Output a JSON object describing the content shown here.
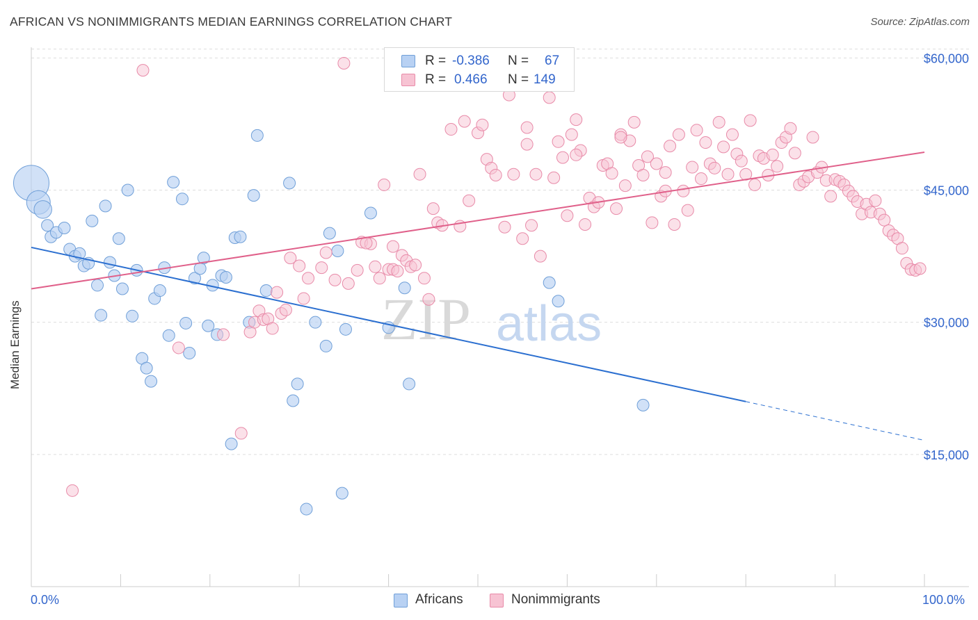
{
  "title": "AFRICAN VS NONIMMIGRANTS MEDIAN EARNINGS CORRELATION CHART",
  "source": "Source: ZipAtlas.com",
  "legend": {
    "rows": [
      {
        "r_label": "R =",
        "r_value": "-0.386",
        "n_label": "N =",
        "n_value": "67"
      },
      {
        "r_label": "R =",
        "r_value": "0.466",
        "n_label": "N =",
        "n_value": "149"
      }
    ]
  },
  "bottom_legend": {
    "africans": "Africans",
    "nonimmigrants": "Nonimmigrants"
  },
  "x_axis": {
    "min_label": "0.0%",
    "max_label": "100.0%"
  },
  "watermark": {
    "zip": "ZIP",
    "atlas": "atlas"
  },
  "colors": {
    "africans_fill": "#b8d1f3",
    "africans_stroke": "#6f9fd8",
    "africans_line": "#2b6fd0",
    "nonimmigrants_fill": "#f7c3d3",
    "nonimmigrants_stroke": "#e88aa8",
    "nonimmigrants_line": "#e0608a",
    "axis_text": "#3366cc",
    "grid": "#dddddd"
  },
  "chart_data": {
    "type": "scatter",
    "xlabel": "",
    "ylabel": "Median Earnings",
    "xlim": [
      0,
      100
    ],
    "ylim": [
      0,
      62000
    ],
    "y_ticks": [
      15000,
      30000,
      45000,
      60000
    ],
    "y_tick_labels": [
      "$15,000",
      "$30,000",
      "$45,000",
      "$60,000"
    ],
    "grid": true,
    "legend_position": "top-center",
    "series": [
      {
        "name": "Africans",
        "r": -0.386,
        "n": 67,
        "trend": {
          "x0": 0,
          "y0": 38500,
          "x1": 80,
          "y1": 21000,
          "dashed_to_x": 100,
          "dashed_y": 16600
        },
        "points": [
          [
            0,
            45800,
            3
          ],
          [
            0.8,
            43600,
            2
          ],
          [
            1.3,
            42800,
            1.5
          ],
          [
            1.8,
            41000,
            1
          ],
          [
            2.2,
            39700,
            1
          ],
          [
            2.8,
            40200,
            1
          ],
          [
            3.7,
            40700,
            1
          ],
          [
            4.3,
            38300,
            1
          ],
          [
            4.9,
            37500,
            1
          ],
          [
            5.4,
            37800,
            1
          ],
          [
            5.9,
            36400,
            1
          ],
          [
            6.4,
            36700,
            1
          ],
          [
            6.8,
            41500,
            1
          ],
          [
            7.4,
            34200,
            1
          ],
          [
            7.8,
            30800,
            1
          ],
          [
            8.3,
            43200,
            1
          ],
          [
            8.8,
            36800,
            1
          ],
          [
            9.3,
            35300,
            1
          ],
          [
            9.8,
            39500,
            1
          ],
          [
            10.2,
            33800,
            1
          ],
          [
            10.8,
            45000,
            1
          ],
          [
            11.3,
            30700,
            1
          ],
          [
            11.8,
            35900,
            1
          ],
          [
            12.4,
            25900,
            1
          ],
          [
            12.9,
            24800,
            1
          ],
          [
            13.4,
            23300,
            1
          ],
          [
            13.8,
            32700,
            1
          ],
          [
            14.4,
            33600,
            1
          ],
          [
            14.9,
            36200,
            1
          ],
          [
            15.4,
            28500,
            1
          ],
          [
            15.9,
            45900,
            1
          ],
          [
            16.9,
            44000,
            1
          ],
          [
            17.3,
            29900,
            1
          ],
          [
            17.7,
            26500,
            1
          ],
          [
            18.3,
            35000,
            1
          ],
          [
            18.9,
            36100,
            1
          ],
          [
            19.3,
            37300,
            1
          ],
          [
            19.8,
            29600,
            1
          ],
          [
            20.3,
            34200,
            1
          ],
          [
            20.8,
            28600,
            1
          ],
          [
            21.3,
            35300,
            1
          ],
          [
            21.8,
            35100,
            1
          ],
          [
            22.4,
            16200,
            1
          ],
          [
            22.8,
            39600,
            1
          ],
          [
            23.4,
            39700,
            1
          ],
          [
            24.4,
            30000,
            1
          ],
          [
            24.9,
            44400,
            1
          ],
          [
            25.3,
            51200,
            1
          ],
          [
            26.3,
            33600,
            1
          ],
          [
            28.9,
            45800,
            1
          ],
          [
            29.3,
            21100,
            1
          ],
          [
            29.8,
            23000,
            1
          ],
          [
            30.8,
            8800,
            1
          ],
          [
            31.8,
            30000,
            1
          ],
          [
            33.0,
            27300,
            1
          ],
          [
            33.4,
            40100,
            1
          ],
          [
            34.3,
            38100,
            1
          ],
          [
            34.8,
            10600,
            1
          ],
          [
            35.2,
            29200,
            1
          ],
          [
            38.0,
            42400,
            1
          ],
          [
            40.0,
            29400,
            1
          ],
          [
            41.8,
            33900,
            1
          ],
          [
            42.3,
            23000,
            1
          ],
          [
            58.0,
            34500,
            1
          ],
          [
            59.0,
            32400,
            1
          ],
          [
            68.5,
            20600,
            1
          ]
        ]
      },
      {
        "name": "Nonimmigrants",
        "r": 0.466,
        "n": 149,
        "trend": {
          "x0": 0,
          "y0": 33800,
          "x1": 100,
          "y1": 49300
        },
        "points": [
          [
            4.6,
            10900
          ],
          [
            12.5,
            58600
          ],
          [
            16.5,
            27100
          ],
          [
            21.5,
            28600
          ],
          [
            23.5,
            17400
          ],
          [
            24.5,
            28900
          ],
          [
            25.0,
            30000
          ],
          [
            25.5,
            31300
          ],
          [
            26.0,
            30300
          ],
          [
            26.5,
            30400
          ],
          [
            27.0,
            29300
          ],
          [
            27.5,
            33400
          ],
          [
            28.0,
            31000
          ],
          [
            28.5,
            31400
          ],
          [
            29.0,
            37300
          ],
          [
            30.0,
            36400
          ],
          [
            30.5,
            32700
          ],
          [
            31.0,
            35000
          ],
          [
            32.5,
            36200
          ],
          [
            33.0,
            37900
          ],
          [
            34.0,
            34800
          ],
          [
            35.0,
            59400
          ],
          [
            35.5,
            34400
          ],
          [
            36.5,
            35900
          ],
          [
            37.0,
            39100
          ],
          [
            38.0,
            38900
          ],
          [
            38.5,
            36300
          ],
          [
            39.0,
            35000
          ],
          [
            39.5,
            45600
          ],
          [
            40.0,
            36000
          ],
          [
            40.5,
            36000
          ],
          [
            41.0,
            35800
          ],
          [
            41.5,
            37600
          ],
          [
            42.0,
            37000
          ],
          [
            42.5,
            36300
          ],
          [
            43.0,
            36500
          ],
          [
            43.5,
            46800
          ],
          [
            44.0,
            35000
          ],
          [
            44.5,
            32600
          ],
          [
            45.0,
            42900
          ],
          [
            45.5,
            41300
          ],
          [
            46.0,
            41000
          ],
          [
            47.0,
            51900
          ],
          [
            48.0,
            40900
          ],
          [
            48.5,
            52800
          ],
          [
            49.0,
            43800
          ],
          [
            50.0,
            51500
          ],
          [
            50.5,
            52400
          ],
          [
            51.0,
            48500
          ],
          [
            51.5,
            47500
          ],
          [
            52.0,
            46700
          ],
          [
            53.0,
            40800
          ],
          [
            53.5,
            55800
          ],
          [
            54.0,
            46800
          ],
          [
            54.5,
            59000
          ],
          [
            55.0,
            39500
          ],
          [
            55.5,
            52100
          ],
          [
            56.0,
            41000
          ],
          [
            56.5,
            46800
          ],
          [
            57.0,
            37500
          ],
          [
            58.0,
            55500
          ],
          [
            58.5,
            46400
          ],
          [
            59.0,
            50500
          ],
          [
            59.5,
            48700
          ],
          [
            60.0,
            42100
          ],
          [
            60.5,
            51300
          ],
          [
            61.0,
            53000
          ],
          [
            61.5,
            49500
          ],
          [
            62.0,
            41100
          ],
          [
            62.5,
            44100
          ],
          [
            63.0,
            43100
          ],
          [
            63.5,
            43600
          ],
          [
            64.0,
            47800
          ],
          [
            64.5,
            48000
          ],
          [
            65.0,
            46900
          ],
          [
            65.5,
            42900
          ],
          [
            66.0,
            51300
          ],
          [
            66.5,
            45500
          ],
          [
            67.0,
            50600
          ],
          [
            67.5,
            52700
          ],
          [
            68.0,
            47800
          ],
          [
            68.5,
            46700
          ],
          [
            69.0,
            48800
          ],
          [
            69.5,
            41300
          ],
          [
            70.0,
            48000
          ],
          [
            70.5,
            44300
          ],
          [
            71.0,
            44900
          ],
          [
            71.5,
            50000
          ],
          [
            72.0,
            41100
          ],
          [
            72.5,
            51300
          ],
          [
            73.0,
            44900
          ],
          [
            73.5,
            42700
          ],
          [
            74.0,
            47600
          ],
          [
            74.5,
            51800
          ],
          [
            75.0,
            46300
          ],
          [
            75.5,
            50400
          ],
          [
            76.0,
            48000
          ],
          [
            76.5,
            47500
          ],
          [
            77.0,
            52700
          ],
          [
            77.5,
            49900
          ],
          [
            78.0,
            46800
          ],
          [
            78.5,
            51300
          ],
          [
            79.0,
            49100
          ],
          [
            79.5,
            48300
          ],
          [
            80.0,
            46800
          ],
          [
            80.5,
            52900
          ],
          [
            81.0,
            45600
          ],
          [
            81.5,
            48900
          ],
          [
            82.0,
            48600
          ],
          [
            82.5,
            46700
          ],
          [
            83.0,
            49000
          ],
          [
            83.5,
            47700
          ],
          [
            84.0,
            50400
          ],
          [
            84.5,
            51000
          ],
          [
            85.0,
            52000
          ],
          [
            85.5,
            49200
          ],
          [
            86.0,
            45600
          ],
          [
            86.5,
            46000
          ],
          [
            87.0,
            46500
          ],
          [
            87.5,
            51000
          ],
          [
            88.0,
            47000
          ],
          [
            88.5,
            47600
          ],
          [
            89.0,
            46100
          ],
          [
            89.5,
            44300
          ],
          [
            90.0,
            46200
          ],
          [
            90.5,
            46000
          ],
          [
            91.0,
            45600
          ],
          [
            91.5,
            44900
          ],
          [
            92.0,
            44300
          ],
          [
            92.5,
            43700
          ],
          [
            93.0,
            42300
          ],
          [
            93.5,
            43400
          ],
          [
            94.0,
            42500
          ],
          [
            94.5,
            43800
          ],
          [
            95.0,
            42300
          ],
          [
            95.5,
            41600
          ],
          [
            96.0,
            40400
          ],
          [
            96.5,
            39900
          ],
          [
            97.0,
            39500
          ],
          [
            97.5,
            38400
          ],
          [
            98.0,
            36700
          ],
          [
            98.5,
            36000
          ],
          [
            99.0,
            35900
          ],
          [
            99.5,
            36100
          ],
          [
            37.5,
            39000
          ],
          [
            61.0,
            49000
          ],
          [
            71.0,
            47000
          ],
          [
            55.5,
            50200
          ],
          [
            66.0,
            51000
          ],
          [
            40.5,
            38600
          ]
        ]
      }
    ]
  }
}
